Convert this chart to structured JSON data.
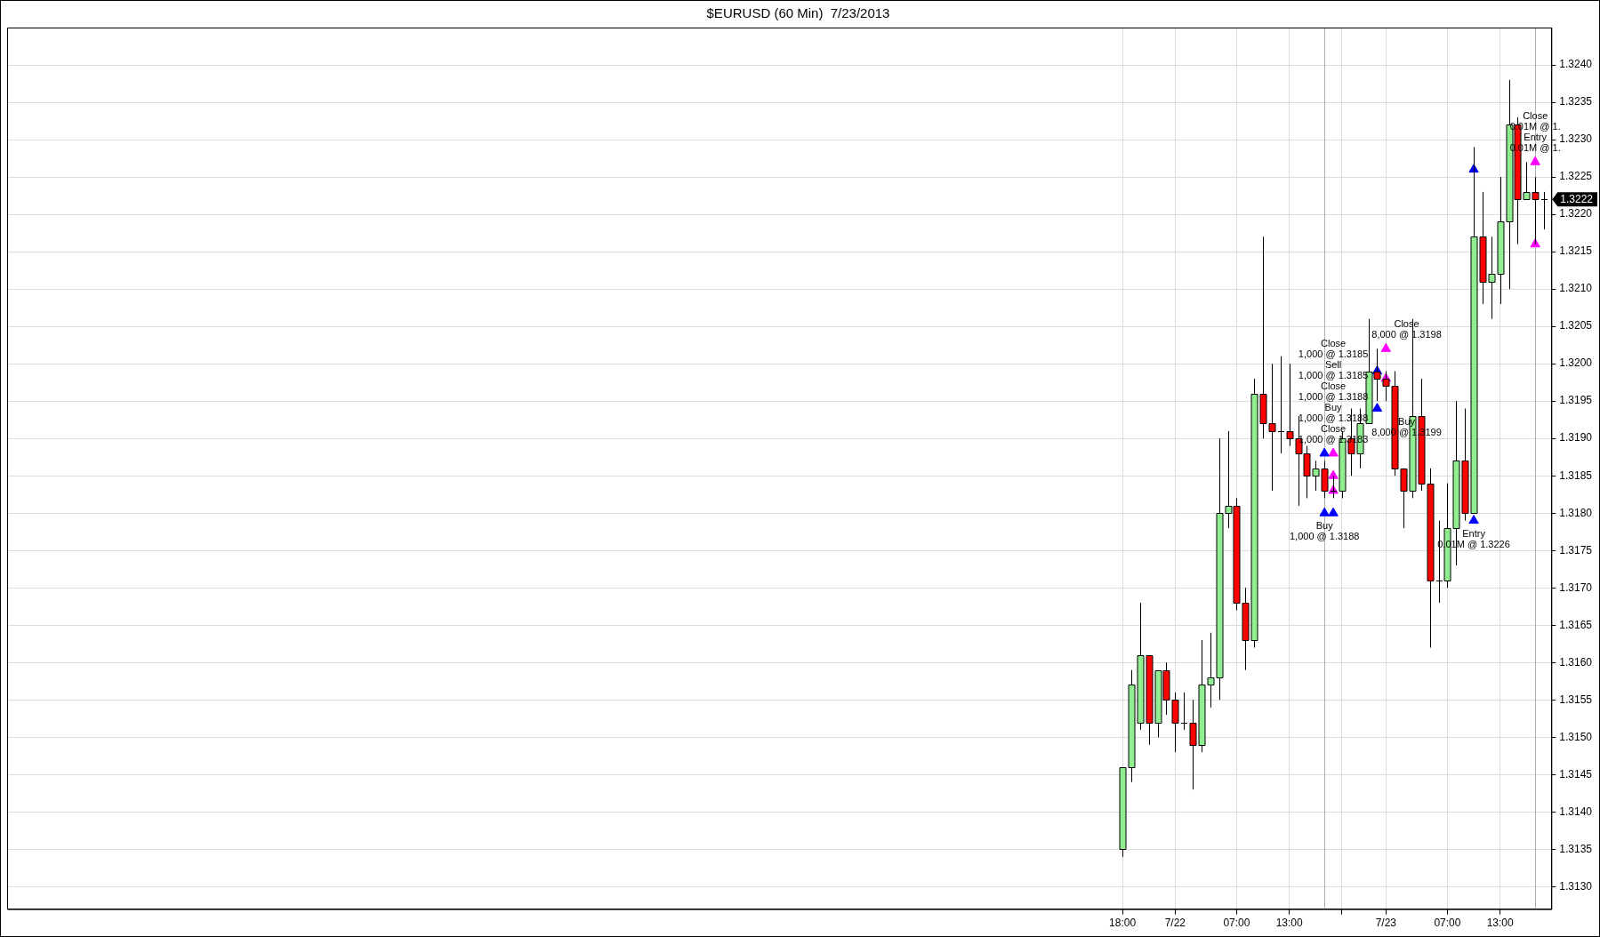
{
  "chart_data": {
    "type": "candlestick",
    "title": "$EURUSD (60 Min)  7/23/2013",
    "x": [
      "2013-07-21T18:00",
      "2013-07-21T19:00",
      "2013-07-21T20:00",
      "2013-07-21T21:00",
      "2013-07-21T22:00",
      "2013-07-21T23:00",
      "2013-07-22T00:00",
      "2013-07-22T01:00",
      "2013-07-22T02:00",
      "2013-07-22T03:00",
      "2013-07-22T04:00",
      "2013-07-22T05:00",
      "2013-07-22T06:00",
      "2013-07-22T07:00",
      "2013-07-22T08:00",
      "2013-07-22T09:00",
      "2013-07-22T10:00",
      "2013-07-22T11:00",
      "2013-07-22T12:00",
      "2013-07-22T13:00",
      "2013-07-22T14:00",
      "2013-07-22T15:00",
      "2013-07-22T16:00",
      "2013-07-22T17:00",
      "2013-07-22T18:00",
      "2013-07-22T19:00",
      "2013-07-22T20:00",
      "2013-07-22T21:00",
      "2013-07-22T22:00",
      "2013-07-22T23:00",
      "2013-07-23T00:00",
      "2013-07-23T01:00",
      "2013-07-23T02:00",
      "2013-07-23T03:00",
      "2013-07-23T04:00",
      "2013-07-23T05:00",
      "2013-07-23T06:00",
      "2013-07-23T07:00",
      "2013-07-23T08:00",
      "2013-07-23T09:00",
      "2013-07-23T10:00",
      "2013-07-23T11:00",
      "2013-07-23T12:00",
      "2013-07-23T13:00",
      "2013-07-23T14:00",
      "2013-07-23T15:00",
      "2013-07-23T16:00",
      "2013-07-23T17:00",
      "2013-07-23T18:00"
    ],
    "ohlc": [
      [
        1.3135,
        1.3146,
        1.3134,
        1.3146
      ],
      [
        1.3146,
        1.3159,
        1.3144,
        1.3157
      ],
      [
        1.3152,
        1.3168,
        1.3151,
        1.3161
      ],
      [
        1.3161,
        1.3161,
        1.3149,
        1.3152
      ],
      [
        1.3152,
        1.3159,
        1.315,
        1.3159
      ],
      [
        1.3159,
        1.316,
        1.3153,
        1.3155
      ],
      [
        1.3155,
        1.3156,
        1.3148,
        1.3152
      ],
      [
        1.3152,
        1.3156,
        1.3151,
        1.3152
      ],
      [
        1.3152,
        1.3155,
        1.3143,
        1.3149
      ],
      [
        1.3149,
        1.3163,
        1.3148,
        1.3157
      ],
      [
        1.3157,
        1.3164,
        1.3154,
        1.3158
      ],
      [
        1.3158,
        1.319,
        1.3155,
        1.318
      ],
      [
        1.318,
        1.3191,
        1.3178,
        1.3181
      ],
      [
        1.3181,
        1.3182,
        1.3167,
        1.3168
      ],
      [
        1.3168,
        1.317,
        1.3159,
        1.3163
      ],
      [
        1.3163,
        1.3198,
        1.3162,
        1.3196
      ],
      [
        1.3196,
        1.3217,
        1.319,
        1.3192
      ],
      [
        1.3192,
        1.32,
        1.3183,
        1.3191
      ],
      [
        1.3191,
        1.3201,
        1.3188,
        1.3191
      ],
      [
        1.3191,
        1.32,
        1.3189,
        1.319
      ],
      [
        1.319,
        1.3193,
        1.3181,
        1.3188
      ],
      [
        1.3188,
        1.3189,
        1.3182,
        1.3185
      ],
      [
        1.3185,
        1.3187,
        1.3183,
        1.3186
      ],
      [
        1.3186,
        1.3187,
        1.3182,
        1.3183
      ],
      [
        1.3183,
        1.3185,
        1.3182,
        1.3183
      ],
      [
        1.3183,
        1.3191,
        1.3182,
        1.319
      ],
      [
        1.319,
        1.3194,
        1.3185,
        1.3188
      ],
      [
        1.3188,
        1.3194,
        1.3186,
        1.3192
      ],
      [
        1.3192,
        1.3206,
        1.3192,
        1.3199
      ],
      [
        1.3199,
        1.3202,
        1.3195,
        1.3198
      ],
      [
        1.3198,
        1.3199,
        1.3195,
        1.3197
      ],
      [
        1.3197,
        1.3199,
        1.3185,
        1.3186
      ],
      [
        1.3186,
        1.3186,
        1.3178,
        1.3183
      ],
      [
        1.3183,
        1.3206,
        1.3182,
        1.3193
      ],
      [
        1.3193,
        1.3198,
        1.3183,
        1.3184
      ],
      [
        1.3184,
        1.3186,
        1.3162,
        1.3171
      ],
      [
        1.3171,
        1.3179,
        1.3168,
        1.3171
      ],
      [
        1.3171,
        1.3184,
        1.317,
        1.3178
      ],
      [
        1.3178,
        1.3195,
        1.3173,
        1.3187
      ],
      [
        1.3187,
        1.3194,
        1.3179,
        1.318
      ],
      [
        1.318,
        1.3229,
        1.318,
        1.3217
      ],
      [
        1.3217,
        1.3223,
        1.3208,
        1.3211
      ],
      [
        1.3211,
        1.3217,
        1.3206,
        1.3212
      ],
      [
        1.3212,
        1.3225,
        1.3208,
        1.3219
      ],
      [
        1.3219,
        1.3238,
        1.321,
        1.3232
      ],
      [
        1.3232,
        1.3233,
        1.3216,
        1.3222
      ],
      [
        1.3222,
        1.3227,
        1.3222,
        1.3223
      ],
      [
        1.3223,
        1.3225,
        1.3216,
        1.3222
      ],
      [
        1.3222,
        1.3223,
        1.3218,
        1.3222
      ]
    ],
    "series": [
      {
        "type": "scatter",
        "color": "#0000ff",
        "x": [
          "2013-07-22T17:00",
          "2013-07-22T18:00",
          "2013-07-22T23:00",
          "2013-07-23T10:00",
          "2013-07-22T17:00",
          "2013-07-22T23:00",
          "2013-07-23T10:00"
        ],
        "values": [
          1.318,
          1.318,
          1.3194,
          1.3179,
          1.3188,
          1.3199,
          1.3226
        ]
      },
      {
        "type": "scatter",
        "color": "#ff00ff",
        "x": [
          "2013-07-22T18:00",
          "2013-07-23T00:00",
          "2013-07-23T17:00",
          "2013-07-22T18:00",
          "2013-07-22T18:00",
          "2013-07-23T00:00",
          "2013-07-23T17:00"
        ],
        "values": [
          1.3188,
          1.3202,
          1.3227,
          1.3185,
          1.3183,
          1.3198,
          1.3216
        ]
      }
    ],
    "marker": "triangle",
    "xlim": [
      "2013-07-16T11:00",
      "2013-07-23T18:50"
    ],
    "xticks": [
      {
        "value": "2013-07-21T18:00",
        "label": "18:00"
      },
      {
        "value": "2013-07-22T00:00",
        "label": "7/22"
      },
      {
        "value": "2013-07-22T07:00",
        "label": "07:00"
      },
      {
        "value": "2013-07-22T13:00",
        "label": "13:00"
      },
      {
        "value": "2013-07-22T19:00",
        "label": null
      },
      {
        "value": "2013-07-23T00:00",
        "label": "7/23"
      },
      {
        "value": "2013-07-23T07:00",
        "label": "07:00"
      },
      {
        "value": "2013-07-23T13:00",
        "label": "13:00"
      }
    ],
    "ylim": [
      1.3127,
      1.3245
    ],
    "yticks": [
      {
        "value": 1.313,
        "label": "1.3130"
      },
      1.3135,
      {
        "value": 1.314,
        "label": "1.3140"
      },
      1.3145,
      {
        "value": 1.315,
        "label": "1.3150"
      },
      1.3155,
      {
        "value": 1.316,
        "label": "1.3160"
      },
      1.3165,
      {
        "value": 1.317,
        "label": "1.3170"
      },
      1.3175,
      {
        "value": 1.318,
        "label": "1.3180"
      },
      1.3185,
      {
        "value": 1.319,
        "label": "1.3190"
      },
      1.3195,
      {
        "value": 1.32,
        "label": "1.3200"
      },
      1.3205,
      {
        "value": 1.321,
        "label": "1.3210"
      },
      1.3215,
      {
        "value": 1.322,
        "label": "1.3220"
      },
      1.3225,
      {
        "value": 1.323,
        "label": "1.3230"
      },
      1.3235,
      {
        "value": 1.324,
        "label": "1.3240"
      }
    ],
    "grid": true,
    "ref_lines": [
      {
        "axis": "x",
        "value": "2013-07-22T17:00",
        "color": "#b0b0b0"
      },
      {
        "axis": "x",
        "value": "2013-07-23T17:00",
        "color": "#b0b0b0"
      }
    ],
    "annotations": [
      "Close",
      "1,000 @ 1.3185",
      "Sell",
      "1,000 @ 1.3185",
      "Close",
      "1,000 @ 1.3188",
      "Buy",
      "1,000 @ 1.3188",
      {
        "text": "Close",
        "x": "2013-07-22T18:00",
        "y": 1.3188
      },
      {
        "text": "1,000 @ 1.3183",
        "x": "2013-07-22T18:00",
        "y": 1.3188
      },
      {
        "text": "Buy",
        "x": "2013-07-22T17:00",
        "y": 1.318
      },
      {
        "text": "1,000 @ 1.3188",
        "x": "2013-07-22T17:00",
        "y": 1.318
      },
      {
        "text": "Close",
        "x": "2013-07-23T00:00",
        "y": 1.3202
      },
      {
        "text": "8,000 @ 1.3198",
        "x": "2013-07-23T00:00",
        "y": 1.3202
      },
      {
        "text": "Buy",
        "x": "2013-07-22T23:00",
        "y": 1.3194
      },
      {
        "text": "8,000 @ 1.3199",
        "x": "2013-07-22T23:00",
        "y": 1.3194
      },
      {
        "text": "Entry",
        "x": "2013-07-23T10:00",
        "y": 1.3179
      },
      {
        "text": "0.01M @ 1.3226",
        "x": "2013-07-23T10:00",
        "y": 1.3179
      },
      "Close",
      "0.01M @ 1.",
      {
        "text": "Entry",
        "x": "2013-07-23T17:00",
        "y": 1.3227
      },
      {
        "text": "0.01M @ 1.",
        "x": "2013-07-23T17:00",
        "y": 1.3227
      },
      {
        "text": "1.3222",
        "x": "2013-07-23T18:00",
        "y": 1.3222
      }
    ]
  }
}
